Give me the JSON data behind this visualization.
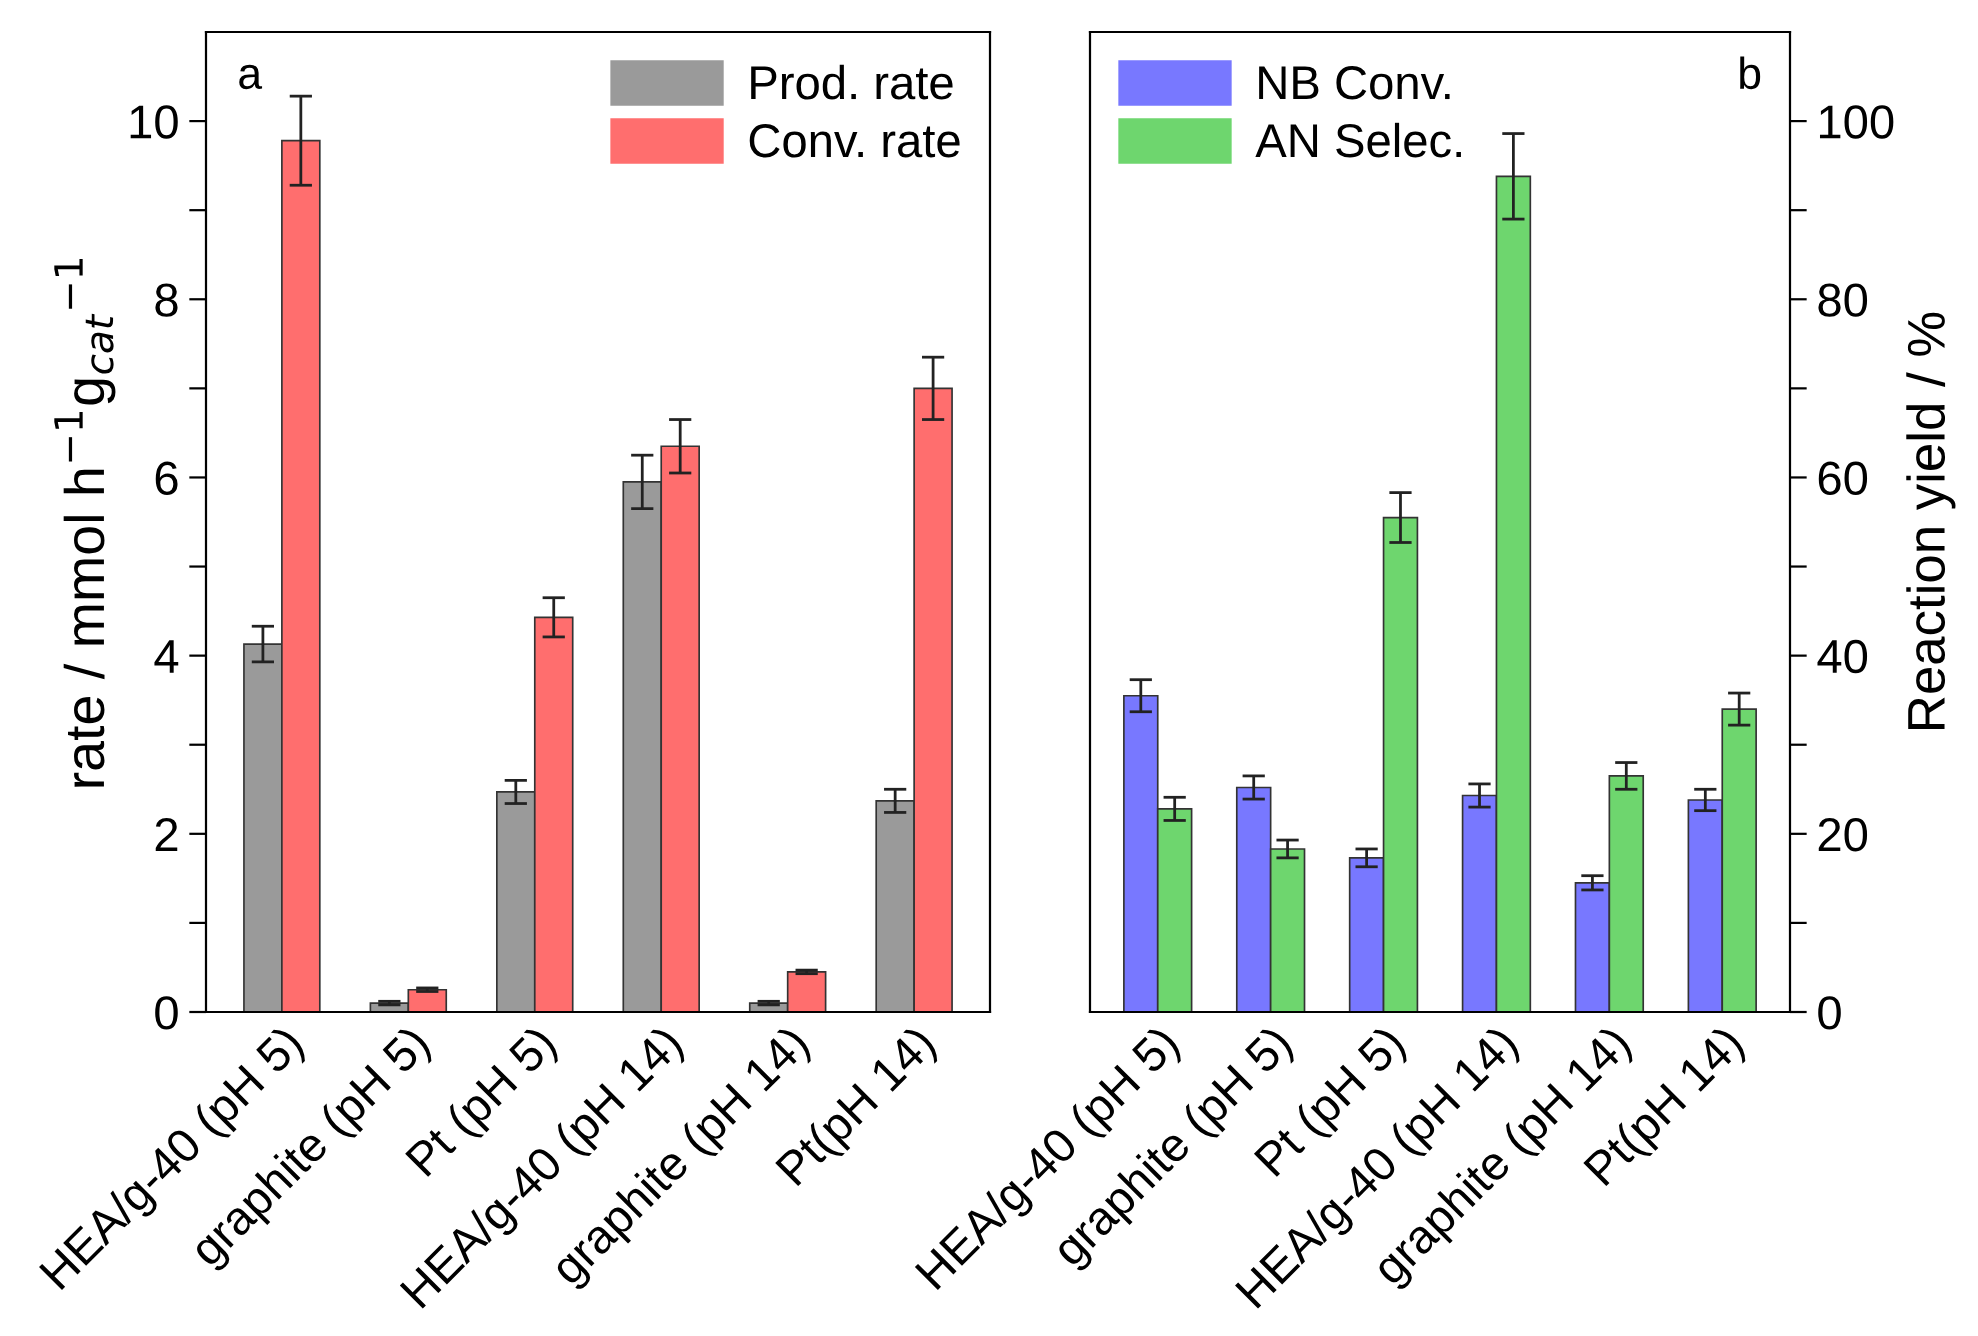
{
  "chart_data": [
    {
      "type": "bar",
      "categories": [
        "HEA/g-40 (pH 5)",
        "graphite (pH 5)",
        "Pt (pH 5)",
        "HEA/g-40 (pH 14)",
        "graphite (pH 14)",
        "Pt(pH 14)"
      ],
      "ylabel": "rate / mmol h$^{−1}$g$_{cat}$$^{−1}$",
      "ylim": [
        0,
        11
      ],
      "yticks": [
        0,
        {
          "value": 1,
          "label": null
        },
        2,
        {
          "value": 3,
          "label": null
        },
        4,
        {
          "value": 5,
          "label": null
        },
        6,
        {
          "value": 7,
          "label": null
        },
        8,
        {
          "value": 9,
          "label": null
        },
        10
      ],
      "legend": "top right",
      "grid": false,
      "annotations": [
        "a"
      ],
      "series": [
        {
          "name": "Prod. rate",
          "color": "#9a9a9a",
          "values": [
            4.13,
            0.1,
            2.47,
            5.95,
            0.1,
            2.37
          ],
          "errors": [
            0.2,
            0.02,
            0.13,
            0.3,
            0.02,
            0.13
          ]
        },
        {
          "name": "Conv. rate",
          "color": "#ff6e6e",
          "values": [
            9.78,
            0.25,
            4.43,
            6.35,
            0.45,
            7.0
          ],
          "errors": [
            0.5,
            0.02,
            0.22,
            0.3,
            0.02,
            0.35
          ]
        }
      ]
    },
    {
      "type": "bar",
      "categories": [
        "HEA/g-40 (pH 5)",
        "graphite (pH 5)",
        "Pt (pH 5)",
        "HEA/g-40 (pH 14)",
        "graphite (pH 14)",
        "Pt(pH 14)"
      ],
      "y2label": "Reaction yield / %",
      "y2lim": [
        0,
        110
      ],
      "y2ticks": [
        0,
        {
          "value": 10,
          "label": null
        },
        20,
        {
          "value": 30,
          "label": null
        },
        40,
        {
          "value": 50,
          "label": null
        },
        60,
        {
          "value": 70,
          "label": null
        },
        80,
        {
          "value": 90,
          "label": null
        },
        100
      ],
      "legend": "top left",
      "grid": false,
      "annotations": [
        "b"
      ],
      "series": [
        {
          "name": "NB Conv.",
          "color": "#7878ff",
          "axis": "y2",
          "values": [
            35.5,
            25.2,
            17.3,
            24.3,
            14.5,
            23.8
          ],
          "errors": [
            1.8,
            1.3,
            1.0,
            1.3,
            0.8,
            1.2
          ]
        },
        {
          "name": "AN Selec.",
          "color": "#6ed66e",
          "axis": "y2",
          "values": [
            22.8,
            18.3,
            55.5,
            93.8,
            26.5,
            34.0
          ],
          "errors": [
            1.3,
            1.0,
            2.8,
            4.8,
            1.5,
            1.8
          ]
        }
      ]
    }
  ]
}
